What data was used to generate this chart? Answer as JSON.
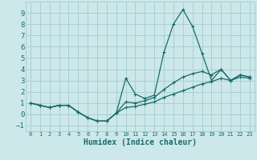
{
  "xlabel": "Humidex (Indice chaleur)",
  "bg_color": "#cce8ea",
  "grid_color": "#aacfd2",
  "line_color": "#1a6b6b",
  "x": [
    0,
    1,
    2,
    3,
    4,
    5,
    6,
    7,
    8,
    9,
    10,
    11,
    12,
    13,
    14,
    15,
    16,
    17,
    18,
    19,
    20,
    21,
    22,
    23
  ],
  "series1": [
    1.0,
    0.8,
    0.6,
    0.8,
    0.8,
    0.2,
    -0.3,
    -0.6,
    -0.6,
    0.1,
    3.2,
    1.8,
    1.4,
    1.7,
    5.5,
    8.0,
    9.3,
    7.8,
    5.4,
    3.0,
    4.0,
    3.0,
    3.5,
    3.3
  ],
  "series2": [
    1.0,
    0.8,
    0.6,
    0.8,
    0.8,
    0.2,
    -0.3,
    -0.6,
    -0.6,
    0.1,
    1.1,
    1.0,
    1.2,
    1.5,
    2.2,
    2.8,
    3.3,
    3.6,
    3.8,
    3.5,
    4.0,
    3.0,
    3.5,
    3.3
  ],
  "series3": [
    1.0,
    0.8,
    0.6,
    0.8,
    0.8,
    0.2,
    -0.3,
    -0.6,
    -0.6,
    0.1,
    0.6,
    0.7,
    0.9,
    1.1,
    1.5,
    1.8,
    2.1,
    2.4,
    2.7,
    2.9,
    3.2,
    3.0,
    3.3,
    3.2
  ],
  "ylim": [
    -1.5,
    10.0
  ],
  "xlim": [
    -0.5,
    23.5
  ],
  "yticks": [
    -1,
    0,
    1,
    2,
    3,
    4,
    5,
    6,
    7,
    8,
    9
  ],
  "xticks": [
    0,
    1,
    2,
    3,
    4,
    5,
    6,
    7,
    8,
    9,
    10,
    11,
    12,
    13,
    14,
    15,
    16,
    17,
    18,
    19,
    20,
    21,
    22,
    23
  ]
}
